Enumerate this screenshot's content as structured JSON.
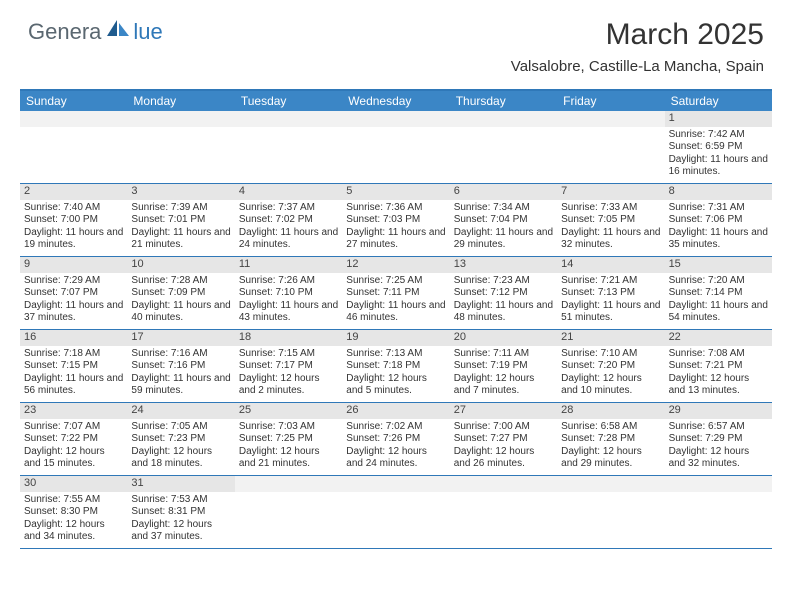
{
  "logo": {
    "part1": "Genera",
    "part2": "lue"
  },
  "title": "March 2025",
  "location": "Valsalobre, Castille-La Mancha, Spain",
  "colors": {
    "header_bg": "#3b86c6",
    "border": "#2f78b8",
    "daybar_bg": "#e6e6e6",
    "logo_gray": "#5a6770",
    "logo_blue": "#2f78b8"
  },
  "weekdays": [
    "Sunday",
    "Monday",
    "Tuesday",
    "Wednesday",
    "Thursday",
    "Friday",
    "Saturday"
  ],
  "weeks": [
    [
      null,
      null,
      null,
      null,
      null,
      null,
      {
        "n": "1",
        "sunrise": "Sunrise: 7:42 AM",
        "sunset": "Sunset: 6:59 PM",
        "daylight": "Daylight: 11 hours and 16 minutes."
      }
    ],
    [
      {
        "n": "2",
        "sunrise": "Sunrise: 7:40 AM",
        "sunset": "Sunset: 7:00 PM",
        "daylight": "Daylight: 11 hours and 19 minutes."
      },
      {
        "n": "3",
        "sunrise": "Sunrise: 7:39 AM",
        "sunset": "Sunset: 7:01 PM",
        "daylight": "Daylight: 11 hours and 21 minutes."
      },
      {
        "n": "4",
        "sunrise": "Sunrise: 7:37 AM",
        "sunset": "Sunset: 7:02 PM",
        "daylight": "Daylight: 11 hours and 24 minutes."
      },
      {
        "n": "5",
        "sunrise": "Sunrise: 7:36 AM",
        "sunset": "Sunset: 7:03 PM",
        "daylight": "Daylight: 11 hours and 27 minutes."
      },
      {
        "n": "6",
        "sunrise": "Sunrise: 7:34 AM",
        "sunset": "Sunset: 7:04 PM",
        "daylight": "Daylight: 11 hours and 29 minutes."
      },
      {
        "n": "7",
        "sunrise": "Sunrise: 7:33 AM",
        "sunset": "Sunset: 7:05 PM",
        "daylight": "Daylight: 11 hours and 32 minutes."
      },
      {
        "n": "8",
        "sunrise": "Sunrise: 7:31 AM",
        "sunset": "Sunset: 7:06 PM",
        "daylight": "Daylight: 11 hours and 35 minutes."
      }
    ],
    [
      {
        "n": "9",
        "sunrise": "Sunrise: 7:29 AM",
        "sunset": "Sunset: 7:07 PM",
        "daylight": "Daylight: 11 hours and 37 minutes."
      },
      {
        "n": "10",
        "sunrise": "Sunrise: 7:28 AM",
        "sunset": "Sunset: 7:09 PM",
        "daylight": "Daylight: 11 hours and 40 minutes."
      },
      {
        "n": "11",
        "sunrise": "Sunrise: 7:26 AM",
        "sunset": "Sunset: 7:10 PM",
        "daylight": "Daylight: 11 hours and 43 minutes."
      },
      {
        "n": "12",
        "sunrise": "Sunrise: 7:25 AM",
        "sunset": "Sunset: 7:11 PM",
        "daylight": "Daylight: 11 hours and 46 minutes."
      },
      {
        "n": "13",
        "sunrise": "Sunrise: 7:23 AM",
        "sunset": "Sunset: 7:12 PM",
        "daylight": "Daylight: 11 hours and 48 minutes."
      },
      {
        "n": "14",
        "sunrise": "Sunrise: 7:21 AM",
        "sunset": "Sunset: 7:13 PM",
        "daylight": "Daylight: 11 hours and 51 minutes."
      },
      {
        "n": "15",
        "sunrise": "Sunrise: 7:20 AM",
        "sunset": "Sunset: 7:14 PM",
        "daylight": "Daylight: 11 hours and 54 minutes."
      }
    ],
    [
      {
        "n": "16",
        "sunrise": "Sunrise: 7:18 AM",
        "sunset": "Sunset: 7:15 PM",
        "daylight": "Daylight: 11 hours and 56 minutes."
      },
      {
        "n": "17",
        "sunrise": "Sunrise: 7:16 AM",
        "sunset": "Sunset: 7:16 PM",
        "daylight": "Daylight: 11 hours and 59 minutes."
      },
      {
        "n": "18",
        "sunrise": "Sunrise: 7:15 AM",
        "sunset": "Sunset: 7:17 PM",
        "daylight": "Daylight: 12 hours and 2 minutes."
      },
      {
        "n": "19",
        "sunrise": "Sunrise: 7:13 AM",
        "sunset": "Sunset: 7:18 PM",
        "daylight": "Daylight: 12 hours and 5 minutes."
      },
      {
        "n": "20",
        "sunrise": "Sunrise: 7:11 AM",
        "sunset": "Sunset: 7:19 PM",
        "daylight": "Daylight: 12 hours and 7 minutes."
      },
      {
        "n": "21",
        "sunrise": "Sunrise: 7:10 AM",
        "sunset": "Sunset: 7:20 PM",
        "daylight": "Daylight: 12 hours and 10 minutes."
      },
      {
        "n": "22",
        "sunrise": "Sunrise: 7:08 AM",
        "sunset": "Sunset: 7:21 PM",
        "daylight": "Daylight: 12 hours and 13 minutes."
      }
    ],
    [
      {
        "n": "23",
        "sunrise": "Sunrise: 7:07 AM",
        "sunset": "Sunset: 7:22 PM",
        "daylight": "Daylight: 12 hours and 15 minutes."
      },
      {
        "n": "24",
        "sunrise": "Sunrise: 7:05 AM",
        "sunset": "Sunset: 7:23 PM",
        "daylight": "Daylight: 12 hours and 18 minutes."
      },
      {
        "n": "25",
        "sunrise": "Sunrise: 7:03 AM",
        "sunset": "Sunset: 7:25 PM",
        "daylight": "Daylight: 12 hours and 21 minutes."
      },
      {
        "n": "26",
        "sunrise": "Sunrise: 7:02 AM",
        "sunset": "Sunset: 7:26 PM",
        "daylight": "Daylight: 12 hours and 24 minutes."
      },
      {
        "n": "27",
        "sunrise": "Sunrise: 7:00 AM",
        "sunset": "Sunset: 7:27 PM",
        "daylight": "Daylight: 12 hours and 26 minutes."
      },
      {
        "n": "28",
        "sunrise": "Sunrise: 6:58 AM",
        "sunset": "Sunset: 7:28 PM",
        "daylight": "Daylight: 12 hours and 29 minutes."
      },
      {
        "n": "29",
        "sunrise": "Sunrise: 6:57 AM",
        "sunset": "Sunset: 7:29 PM",
        "daylight": "Daylight: 12 hours and 32 minutes."
      }
    ],
    [
      {
        "n": "30",
        "sunrise": "Sunrise: 7:55 AM",
        "sunset": "Sunset: 8:30 PM",
        "daylight": "Daylight: 12 hours and 34 minutes."
      },
      {
        "n": "31",
        "sunrise": "Sunrise: 7:53 AM",
        "sunset": "Sunset: 8:31 PM",
        "daylight": "Daylight: 12 hours and 37 minutes."
      },
      null,
      null,
      null,
      null,
      null
    ]
  ]
}
